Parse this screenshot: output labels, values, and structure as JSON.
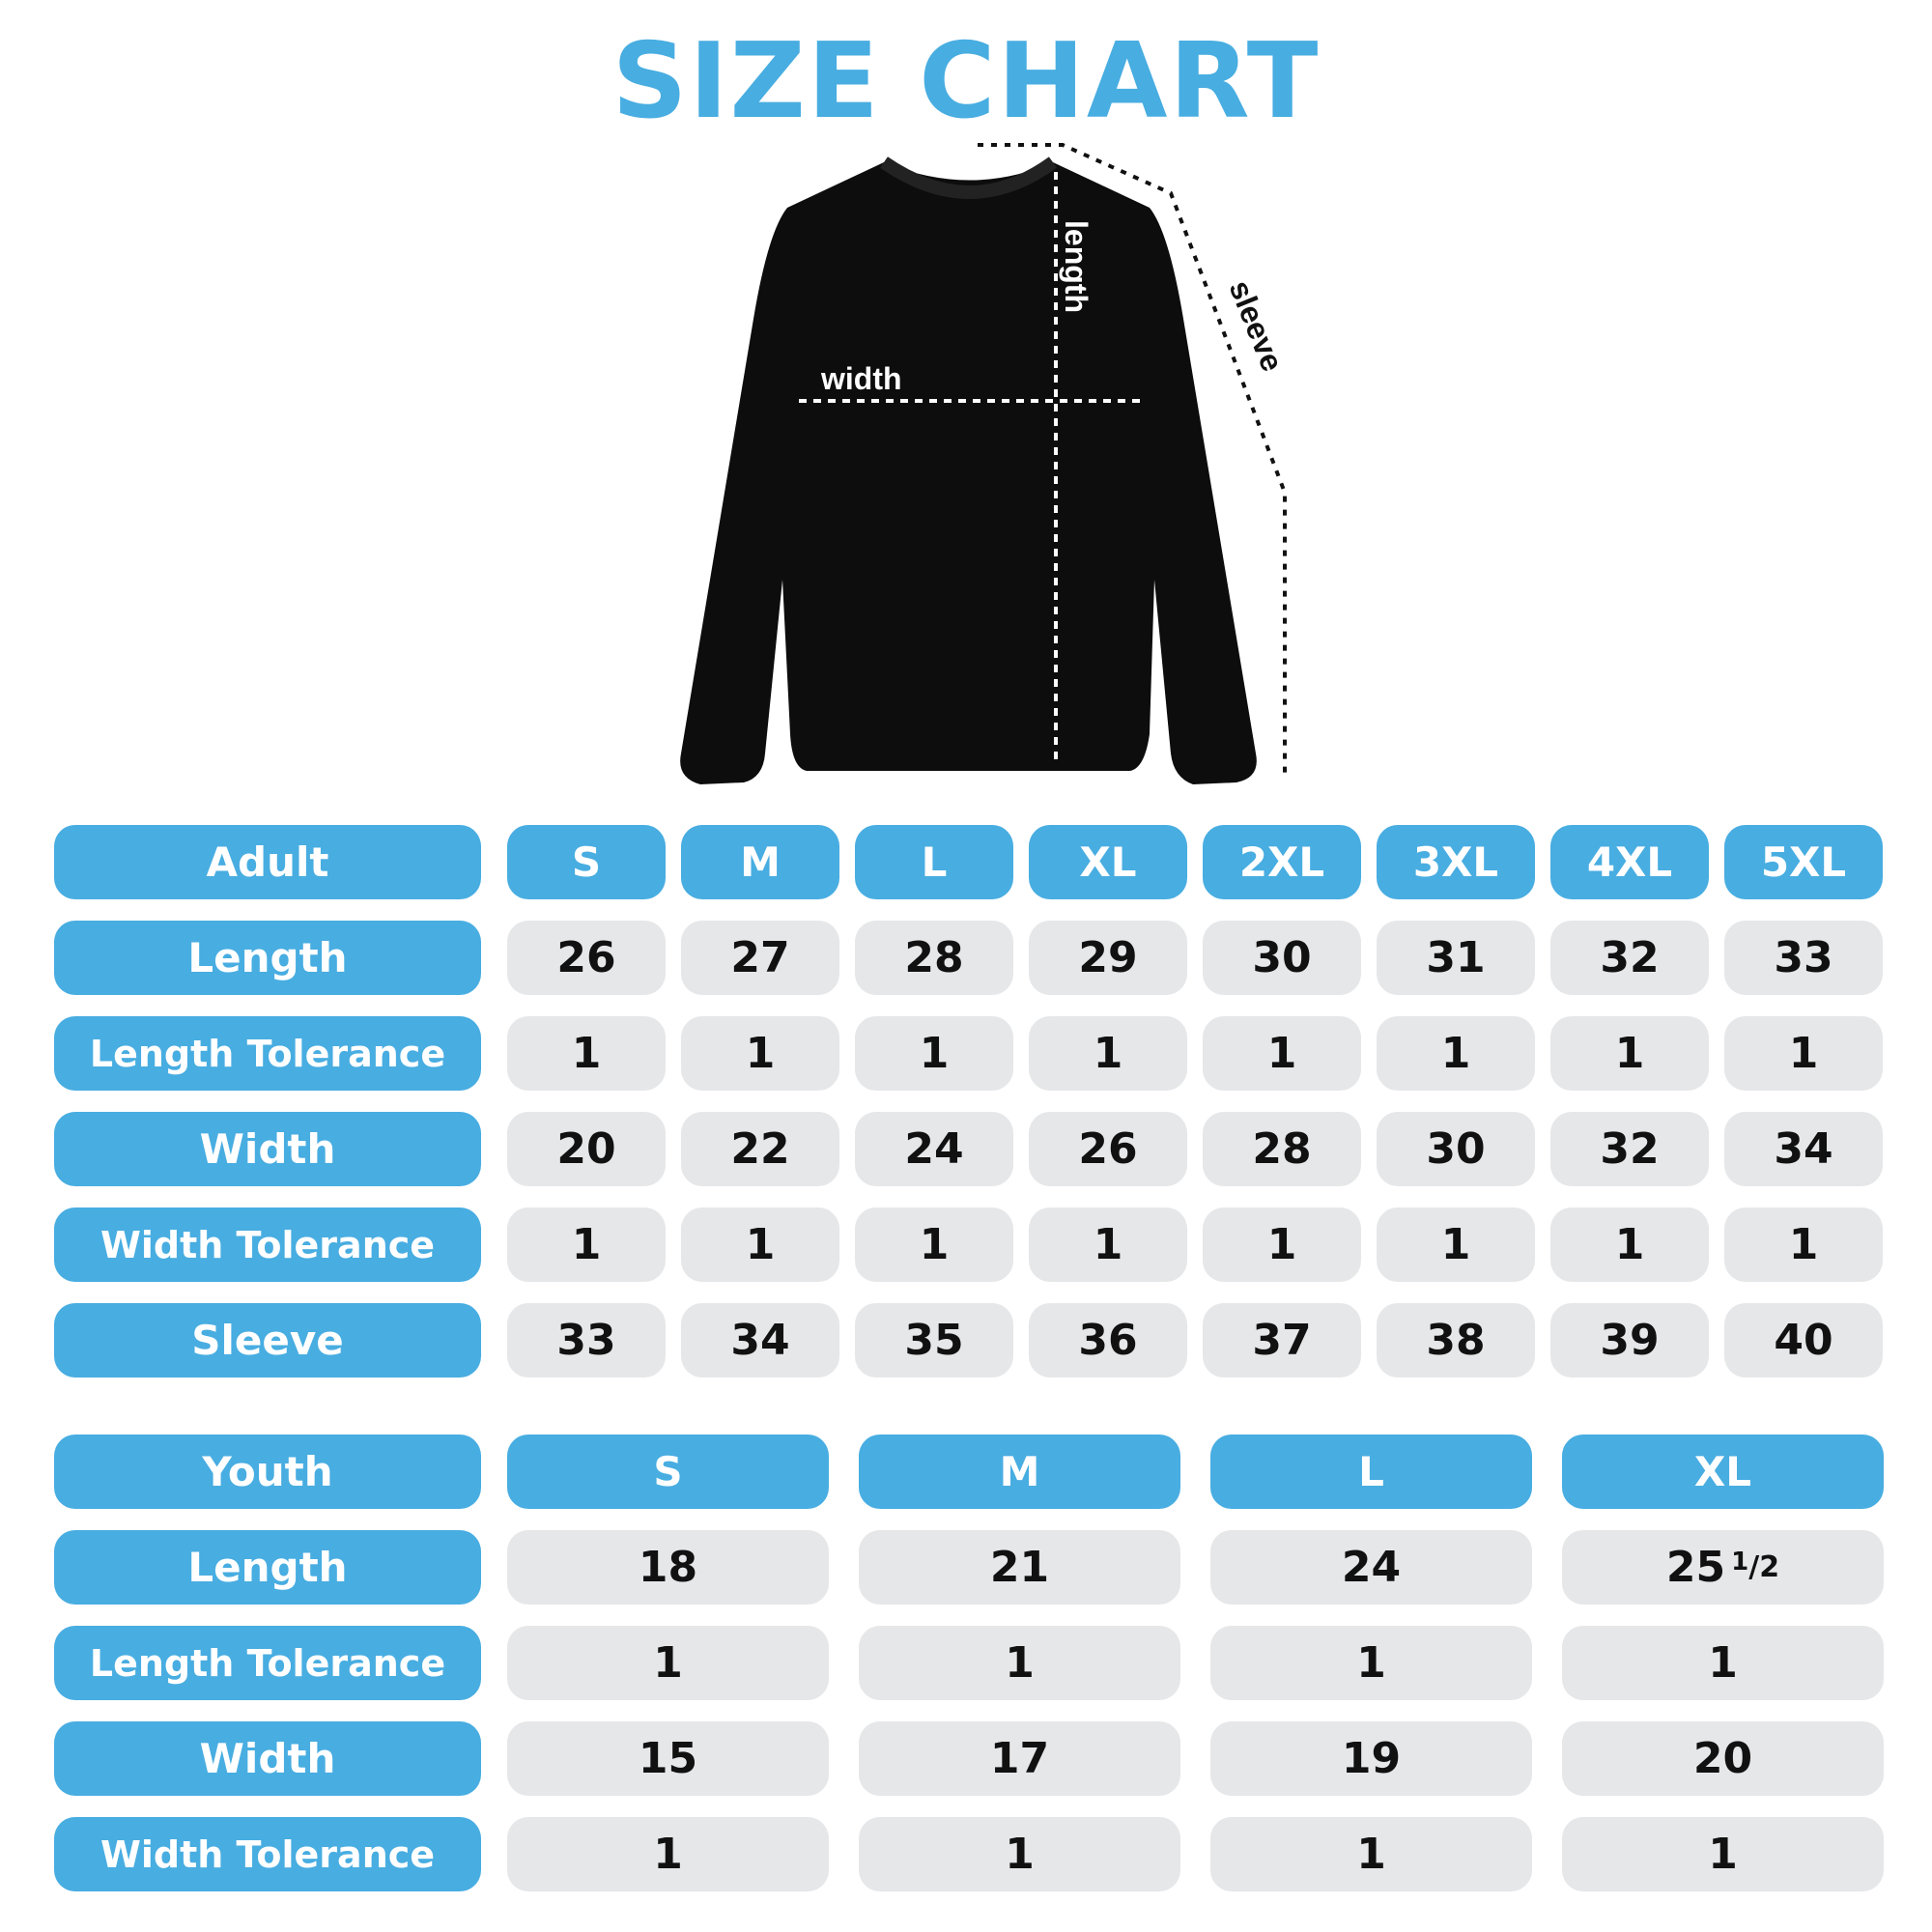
{
  "title": "SIZE CHART",
  "accent_color": "#48ade1",
  "cell_color": "#e6e7e9",
  "diagram": {
    "labels": {
      "length": "length",
      "width": "width",
      "sleeve": "sleeve"
    }
  },
  "adult": {
    "header": "Adult",
    "sizes": [
      "S",
      "M",
      "L",
      "XL",
      "2XL",
      "3XL",
      "4XL",
      "5XL"
    ],
    "rows": [
      {
        "label": "Length",
        "values": [
          "26",
          "27",
          "28",
          "29",
          "30",
          "31",
          "32",
          "33"
        ]
      },
      {
        "label": "Length Tolerance",
        "values": [
          "1",
          "1",
          "1",
          "1",
          "1",
          "1",
          "1",
          "1"
        ]
      },
      {
        "label": "Width",
        "values": [
          "20",
          "22",
          "24",
          "26",
          "28",
          "30",
          "32",
          "34"
        ]
      },
      {
        "label": "Width Tolerance",
        "values": [
          "1",
          "1",
          "1",
          "1",
          "1",
          "1",
          "1",
          "1"
        ]
      },
      {
        "label": "Sleeve",
        "values": [
          "33",
          "34",
          "35",
          "36",
          "37",
          "38",
          "39",
          "40"
        ]
      }
    ]
  },
  "youth": {
    "header": "Youth",
    "sizes": [
      "S",
      "M",
      "L",
      "XL"
    ],
    "rows": [
      {
        "label": "Length",
        "values": [
          "18",
          "21",
          "24",
          "25 1/2"
        ]
      },
      {
        "label": "Length Tolerance",
        "values": [
          "1",
          "1",
          "1",
          "1"
        ]
      },
      {
        "label": "Width",
        "values": [
          "15",
          "17",
          "19",
          "20"
        ]
      },
      {
        "label": "Width Tolerance",
        "values": [
          "1",
          "1",
          "1",
          "1"
        ]
      }
    ]
  }
}
